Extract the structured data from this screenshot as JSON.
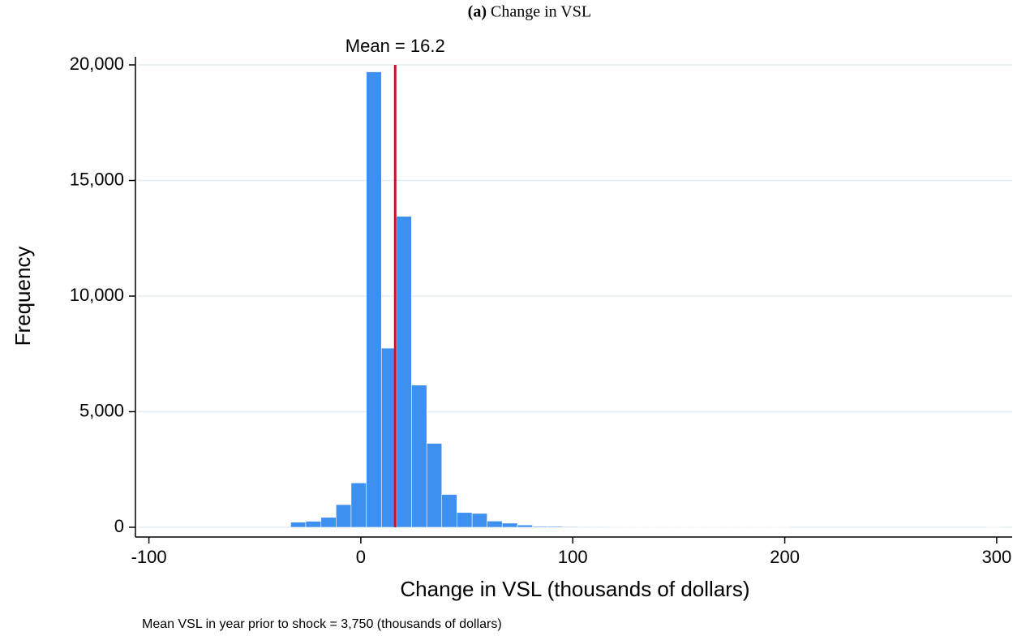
{
  "chart_data": {
    "type": "histogram",
    "title_prefix": "(a)",
    "title": "Change in VSL",
    "xlabel": "Change in VSL (thousands of dollars)",
    "ylabel": "Frequency",
    "note": "Mean VSL in year prior to shock = 3,750 (thousands of dollars)",
    "bins": [
      -33.1,
      -26.0,
      -18.8,
      -11.7,
      -4.6,
      2.6,
      9.7,
      16.8,
      23.9,
      31.1,
      38.2,
      45.3,
      52.5,
      59.6,
      66.7,
      73.9,
      81.0,
      88.1,
      95.2,
      102.4,
      109.5,
      116.6,
      123.8,
      130.9,
      138.0,
      145.2,
      152.3,
      159.4,
      166.5,
      173.7,
      180.8,
      187.9,
      195.1,
      202.2,
      209.3,
      216.5,
      223.6,
      230.7,
      237.8,
      245.0,
      252.1,
      259.2,
      266.4,
      273.5,
      280.6,
      287.8,
      294.9,
      302.0
    ],
    "values": [
      220,
      260,
      430,
      980,
      1920,
      19700,
      7750,
      13450,
      6150,
      3630,
      1420,
      640,
      600,
      270,
      180,
      100,
      40,
      40,
      30,
      25,
      25,
      20,
      20,
      20,
      20,
      20,
      20,
      20,
      20,
      20,
      20,
      20,
      15,
      0,
      0,
      0,
      0,
      0,
      0,
      0,
      0,
      0,
      0,
      0,
      0,
      0,
      15
    ],
    "color": "#3d8ff0",
    "mean_line": {
      "value": 16.2,
      "label": "Mean = 16.2",
      "color": "#c8102e"
    },
    "xlim": [
      -105.2,
      307.3
    ],
    "xticks": [
      -100,
      0,
      100,
      200,
      300
    ],
    "ylim": [
      -351,
      20351
    ],
    "yticks": [
      0,
      {
        "value": 5000,
        "label": "5,000"
      },
      {
        "value": 10000,
        "label": "10,000"
      },
      {
        "value": 15000,
        "label": "15,000"
      },
      {
        "value": 20000,
        "label": "20,000"
      }
    ],
    "grid": true
  }
}
